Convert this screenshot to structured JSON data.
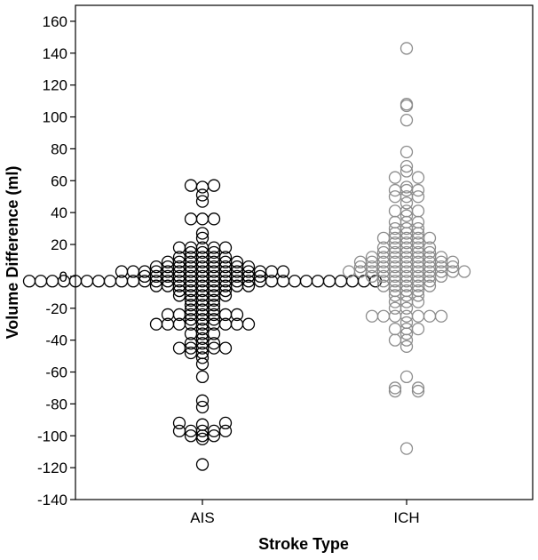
{
  "chart_data": {
    "type": "scatter",
    "title": "",
    "xlabel": "Stroke Type",
    "ylabel": "Volume Difference (ml)",
    "categories": [
      "AIS",
      "ICH"
    ],
    "ylim": [
      -140,
      170
    ],
    "yticks": [
      -140,
      -120,
      -100,
      -80,
      -60,
      -40,
      -20,
      0,
      20,
      40,
      60,
      80,
      100,
      120,
      140,
      160
    ],
    "grid": false,
    "legend": "none",
    "series": [
      {
        "category": "AIS",
        "color": "#000000",
        "rows": [
          {
            "y": 57,
            "offsets": [
              -1,
              1
            ]
          },
          {
            "y": 56,
            "offsets": [
              0
            ]
          },
          {
            "y": 51,
            "offsets": [
              0
            ]
          },
          {
            "y": 47,
            "offsets": [
              0
            ]
          },
          {
            "y": 36,
            "offsets": [
              -1,
              1
            ]
          },
          {
            "y": 36,
            "offsets": [
              0
            ]
          },
          {
            "y": 27,
            "offsets": [
              0
            ]
          },
          {
            "y": 24,
            "offsets": [
              0
            ]
          },
          {
            "y": 18,
            "offsets": [
              -2,
              -1,
              0,
              1,
              2
            ]
          },
          {
            "y": 15,
            "offsets": [
              -1,
              0,
              1
            ]
          },
          {
            "y": 12,
            "offsets": [
              -2,
              -1,
              0,
              1,
              2
            ]
          },
          {
            "y": 9,
            "offsets": [
              -3,
              -2,
              -1,
              0,
              1,
              2,
              3
            ]
          },
          {
            "y": 6,
            "offsets": [
              -4,
              -3,
              -2,
              -1,
              0,
              1,
              2,
              3,
              4
            ]
          },
          {
            "y": 3,
            "offsets": [
              -7,
              -6,
              -5,
              -4,
              -3,
              -2,
              -1,
              0,
              1,
              2,
              3,
              4,
              5,
              6,
              7
            ]
          },
          {
            "y": 0,
            "offsets": [
              -5,
              -4,
              -3,
              -2,
              -1,
              0,
              1,
              2,
              3,
              4,
              5
            ]
          },
          {
            "y": -3,
            "offsets": [
              -15,
              -14,
              -13,
              -12,
              -11,
              -10,
              -9,
              -8,
              -7,
              -6,
              -5,
              -4,
              -3,
              -2,
              -1,
              0,
              1,
              2,
              3,
              4,
              5,
              6,
              7,
              8,
              9,
              10,
              11,
              12,
              13,
              14,
              15
            ]
          },
          {
            "y": -6,
            "offsets": [
              -4,
              -3,
              -2,
              -1,
              0,
              1,
              2,
              3,
              4
            ]
          },
          {
            "y": -9,
            "offsets": [
              -2,
              -1,
              0,
              1,
              2
            ]
          },
          {
            "y": -12,
            "offsets": [
              -2,
              -1,
              0,
              1,
              2
            ]
          },
          {
            "y": -15,
            "offsets": [
              -1,
              0,
              1
            ]
          },
          {
            "y": -18,
            "offsets": [
              -1,
              0,
              1
            ]
          },
          {
            "y": -21,
            "offsets": [
              -1,
              0,
              1
            ]
          },
          {
            "y": -24,
            "offsets": [
              -3,
              -2,
              -1,
              0,
              1,
              2,
              3
            ]
          },
          {
            "y": -27,
            "offsets": [
              -1,
              0,
              1
            ]
          },
          {
            "y": -30,
            "offsets": [
              -4,
              -3,
              -2,
              -1,
              0,
              1,
              2,
              3,
              4
            ]
          },
          {
            "y": -33,
            "offsets": [
              0
            ]
          },
          {
            "y": -36,
            "offsets": [
              -1,
              0,
              1
            ]
          },
          {
            "y": -39,
            "offsets": [
              0
            ]
          },
          {
            "y": -42,
            "offsets": [
              -1,
              0,
              1
            ]
          },
          {
            "y": -45,
            "offsets": [
              -2,
              -1,
              0,
              1,
              2
            ]
          },
          {
            "y": -48,
            "offsets": [
              -1,
              0
            ]
          },
          {
            "y": -51,
            "offsets": [
              0
            ]
          },
          {
            "y": -55,
            "offsets": [
              0
            ]
          },
          {
            "y": -63,
            "offsets": [
              0
            ]
          },
          {
            "y": -78,
            "offsets": [
              0
            ]
          },
          {
            "y": -82,
            "offsets": [
              0
            ]
          },
          {
            "y": -92,
            "offsets": [
              -2,
              2
            ]
          },
          {
            "y": -93,
            "offsets": [
              0
            ]
          },
          {
            "y": -97,
            "offsets": [
              -2,
              -1,
              0,
              1,
              2
            ]
          },
          {
            "y": -100,
            "offsets": [
              -1,
              0,
              1
            ]
          },
          {
            "y": -102,
            "offsets": [
              0
            ]
          },
          {
            "y": -118,
            "offsets": [
              0
            ]
          }
        ]
      },
      {
        "category": "ICH",
        "color": "#8c8c8c",
        "rows": [
          {
            "y": 143,
            "offsets": [
              0
            ]
          },
          {
            "y": 108,
            "offsets": [
              0
            ]
          },
          {
            "y": 107,
            "offsets": [
              0
            ]
          },
          {
            "y": 98,
            "offsets": [
              0
            ]
          },
          {
            "y": 78,
            "offsets": [
              0
            ]
          },
          {
            "y": 69,
            "offsets": [
              0
            ]
          },
          {
            "y": 66,
            "offsets": [
              0
            ]
          },
          {
            "y": 62,
            "offsets": [
              -1,
              1
            ]
          },
          {
            "y": 56,
            "offsets": [
              0
            ]
          },
          {
            "y": 54,
            "offsets": [
              -1,
              0,
              1
            ]
          },
          {
            "y": 50,
            "offsets": [
              -1,
              0,
              1
            ]
          },
          {
            "y": 46,
            "offsets": [
              0
            ]
          },
          {
            "y": 41,
            "offsets": [
              -1,
              0,
              1
            ]
          },
          {
            "y": 38,
            "offsets": [
              0
            ]
          },
          {
            "y": 34,
            "offsets": [
              -1,
              0,
              1
            ]
          },
          {
            "y": 30,
            "offsets": [
              -1,
              0,
              1
            ]
          },
          {
            "y": 27,
            "offsets": [
              -1,
              0,
              1
            ]
          },
          {
            "y": 24,
            "offsets": [
              -2,
              -1,
              0,
              1,
              2
            ]
          },
          {
            "y": 21,
            "offsets": [
              -1,
              0,
              1
            ]
          },
          {
            "y": 18,
            "offsets": [
              -2,
              -1,
              0,
              1,
              2
            ]
          },
          {
            "y": 15,
            "offsets": [
              -2,
              -1,
              0,
              1,
              2
            ]
          },
          {
            "y": 12,
            "offsets": [
              -3,
              -2,
              -1,
              0,
              1,
              2,
              3
            ]
          },
          {
            "y": 9,
            "offsets": [
              -4,
              -3,
              -2,
              -1,
              0,
              1,
              2,
              3,
              4
            ]
          },
          {
            "y": 6,
            "offsets": [
              -4,
              -3,
              -2,
              -1,
              0,
              1,
              2,
              3,
              4
            ]
          },
          {
            "y": 3,
            "offsets": [
              -5,
              -4,
              -3,
              -2,
              -1,
              0,
              1,
              2,
              3,
              4,
              5
            ]
          },
          {
            "y": 0,
            "offsets": [
              -3,
              -2,
              -1,
              0,
              1,
              2,
              3
            ]
          },
          {
            "y": -3,
            "offsets": [
              -2,
              -1,
              0,
              1,
              2
            ]
          },
          {
            "y": -6,
            "offsets": [
              -2,
              -1,
              0,
              1,
              2
            ]
          },
          {
            "y": -9,
            "offsets": [
              -1,
              0,
              1
            ]
          },
          {
            "y": -12,
            "offsets": [
              -1,
              0,
              1
            ]
          },
          {
            "y": -16,
            "offsets": [
              -1,
              0,
              1
            ]
          },
          {
            "y": -20,
            "offsets": [
              -1,
              0
            ]
          },
          {
            "y": -25,
            "offsets": [
              -3,
              -2,
              -1,
              0,
              1,
              2,
              3
            ]
          },
          {
            "y": -29,
            "offsets": [
              0
            ]
          },
          {
            "y": -33,
            "offsets": [
              -1,
              0,
              1
            ]
          },
          {
            "y": -36,
            "offsets": [
              0
            ]
          },
          {
            "y": -40,
            "offsets": [
              -1,
              0
            ]
          },
          {
            "y": -44,
            "offsets": [
              0
            ]
          },
          {
            "y": -63,
            "offsets": [
              0
            ]
          },
          {
            "y": -70,
            "offsets": [
              -1,
              1
            ]
          },
          {
            "y": -72,
            "offsets": [
              -1,
              1
            ]
          },
          {
            "y": -108,
            "offsets": [
              0
            ]
          }
        ]
      }
    ]
  }
}
